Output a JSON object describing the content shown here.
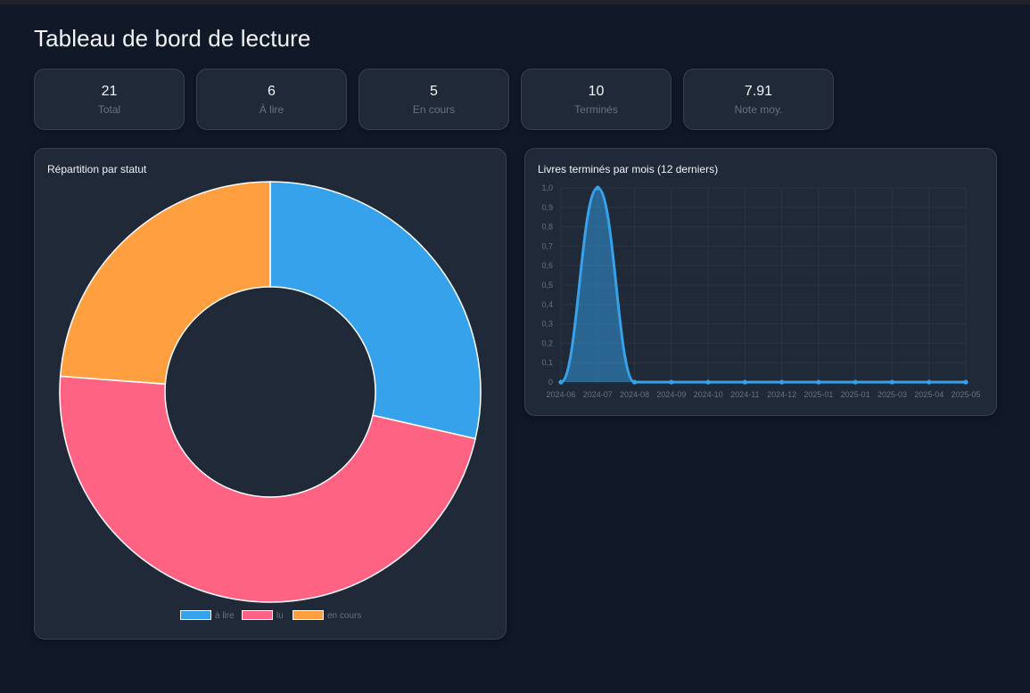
{
  "page": {
    "title": "Tableau de bord de lecture"
  },
  "stats": [
    {
      "value": "21",
      "label": "Total"
    },
    {
      "value": "6",
      "label": "À lire"
    },
    {
      "value": "5",
      "label": "En cours"
    },
    {
      "value": "10",
      "label": "Terminés"
    },
    {
      "value": "7.91",
      "label": "Note moy."
    }
  ],
  "colors": {
    "blue": "#36A2EB",
    "pink": "#FF6384",
    "orange": "#FF9F40"
  },
  "chart_data": [
    {
      "type": "pie",
      "title": "Répartition par statut",
      "categories": [
        "à lire",
        "lu",
        "en cours"
      ],
      "values": [
        6,
        10,
        5
      ],
      "colors": [
        "#36A2EB",
        "#FF6384",
        "#FF9F40"
      ],
      "legend": "bottom"
    },
    {
      "type": "area",
      "title": "Livres terminés par mois (12 derniers)",
      "x": [
        "2024-06",
        "2024-07",
        "2024-08",
        "2024-09",
        "2024-10",
        "2024-11",
        "2024-12",
        "2025-01",
        "2025-01",
        "2025-03",
        "2025-04",
        "2025-05"
      ],
      "values": [
        0,
        1,
        0,
        0,
        0,
        0,
        0,
        0,
        0,
        0,
        0,
        0
      ],
      "ylim": [
        0,
        1
      ],
      "yticks": [
        "0",
        "0,1",
        "0,2",
        "0,3",
        "0,4",
        "0,5",
        "0,6",
        "0,7",
        "0,8",
        "0,9",
        "1,0"
      ],
      "grid": true,
      "color": "#36A2EB"
    }
  ]
}
